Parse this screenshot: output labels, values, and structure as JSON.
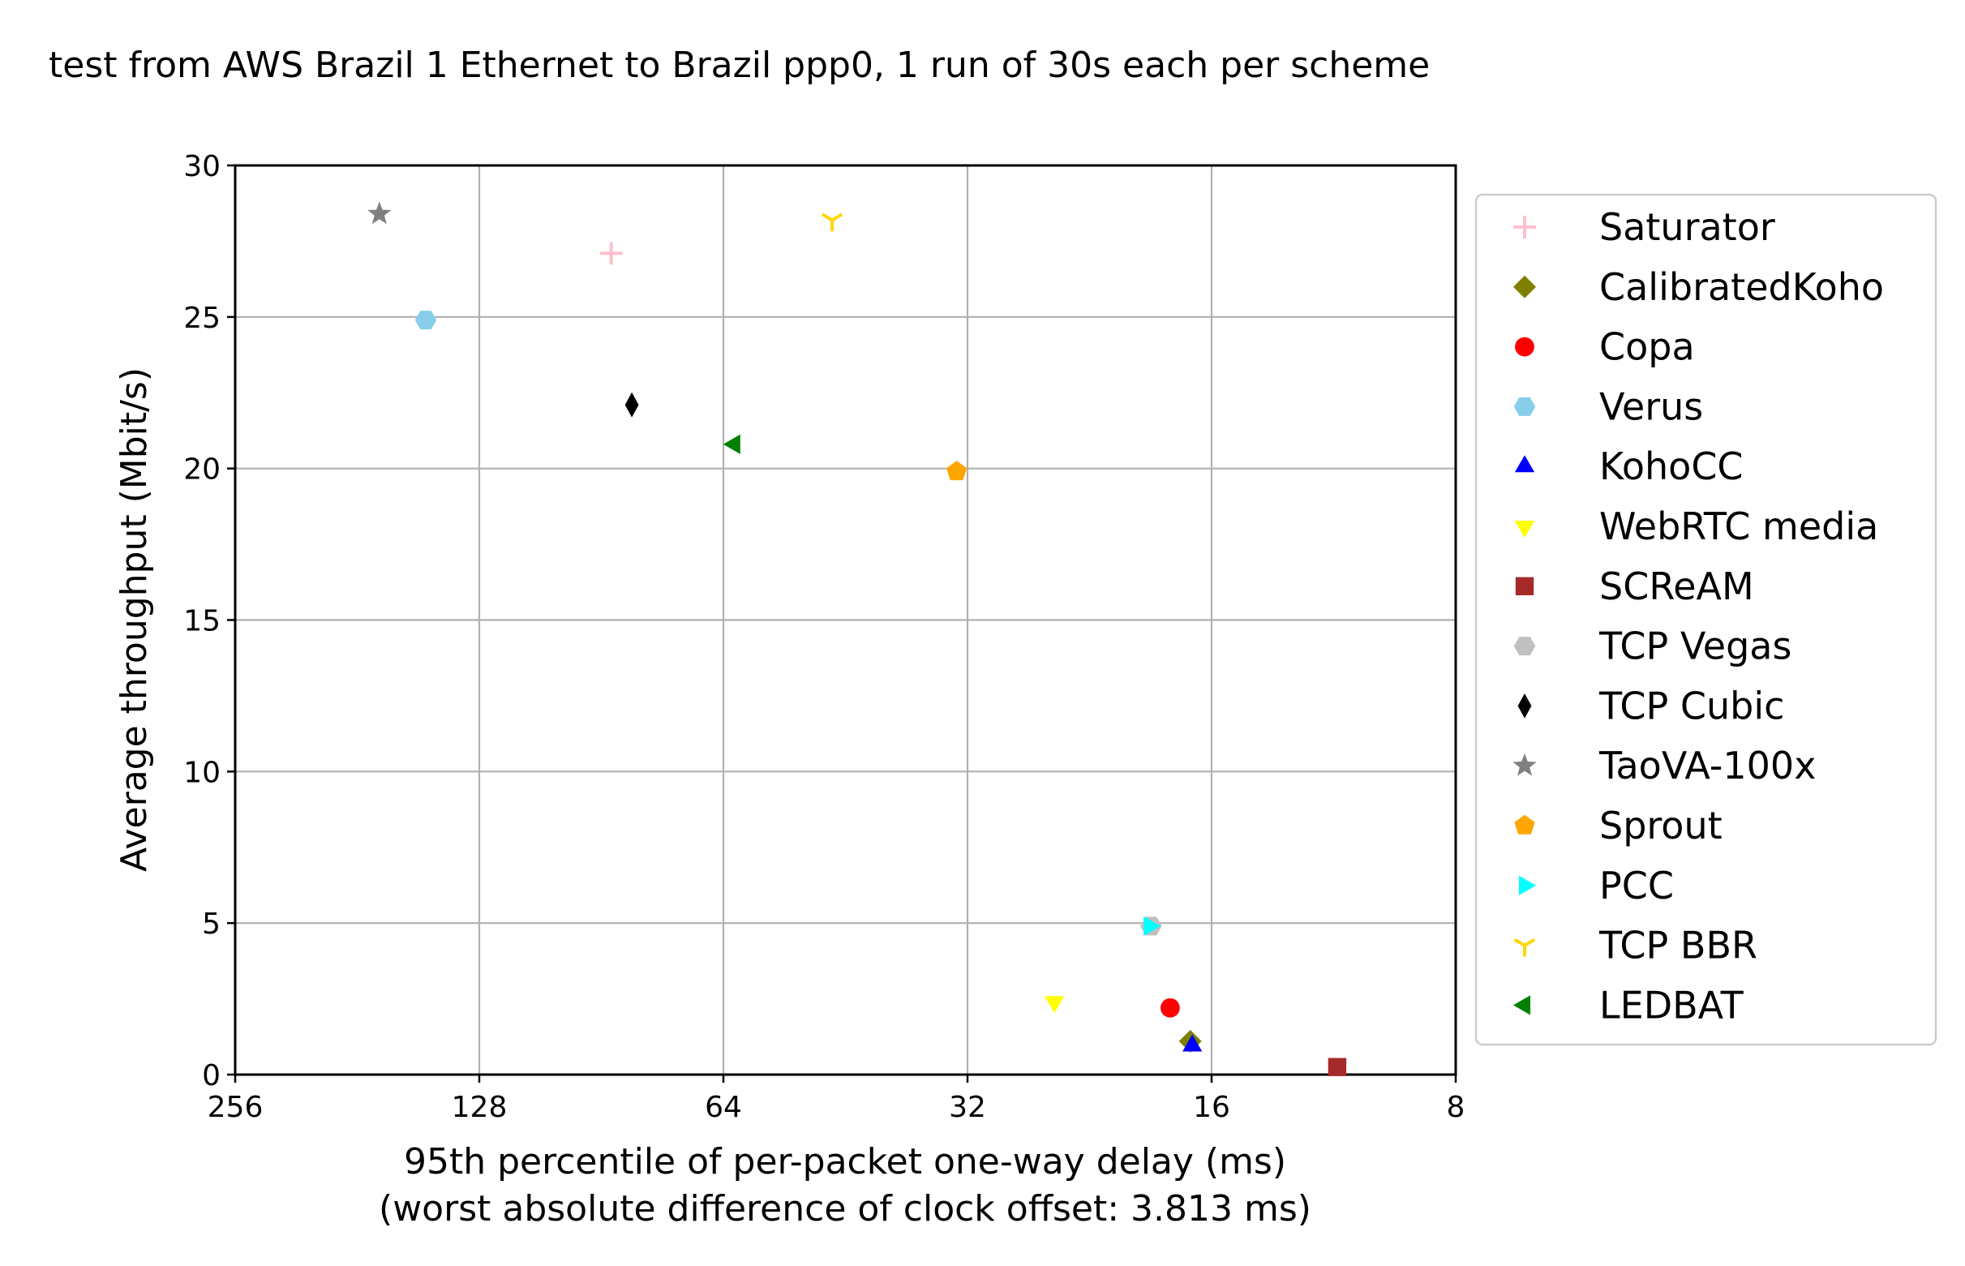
{
  "chart_data": {
    "type": "scatter",
    "title": "test from AWS Brazil 1 Ethernet to Brazil ppp0, 1 run of 30s each per scheme",
    "xlabel": "95th percentile of per-packet one-way delay (ms)",
    "xlabel2": "(worst absolute difference of clock offset: 3.813 ms)",
    "ylabel": "Average throughput (Mbit/s)",
    "xscale": "log2-inverted",
    "xlim": [
      256,
      8
    ],
    "ylim": [
      0,
      30
    ],
    "xticks": [
      256,
      128,
      64,
      32,
      16,
      8
    ],
    "xtick_labels": [
      "256",
      "128",
      "64",
      "32",
      "16",
      "8"
    ],
    "yticks": [
      0,
      5,
      10,
      15,
      20,
      25,
      30
    ],
    "ytick_labels": [
      "0",
      "5",
      "10",
      "15",
      "20",
      "25",
      "30"
    ],
    "grid": true,
    "legend_position": "right-outside",
    "series": [
      {
        "name": "Saturator",
        "marker": "plus",
        "color": "#ffc0cb",
        "x": 88,
        "y": 27.1
      },
      {
        "name": "CalibratedKoho",
        "marker": "diamond",
        "color": "#808000",
        "x": 17.0,
        "y": 1.1
      },
      {
        "name": "Copa",
        "marker": "circle",
        "color": "#ff0000",
        "x": 18.0,
        "y": 2.2
      },
      {
        "name": "Verus",
        "marker": "hexagon",
        "color": "#87ceeb",
        "x": 149,
        "y": 24.9
      },
      {
        "name": "KohoCC",
        "marker": "triangle-up",
        "color": "#0000ff",
        "x": 16.9,
        "y": 0.95
      },
      {
        "name": "WebRTC media",
        "marker": "triangle-down",
        "color": "#ffff00",
        "x": 25,
        "y": 2.4
      },
      {
        "name": "SCReAM",
        "marker": "square",
        "color": "#a52a2a",
        "x": 11.2,
        "y": 0.25
      },
      {
        "name": "TCP Vegas",
        "marker": "hexagon",
        "color": "#c0c0c0",
        "x": 19.0,
        "y": 4.9
      },
      {
        "name": "TCP Cubic",
        "marker": "thin-diamond",
        "color": "#000000",
        "x": 83,
        "y": 22.1
      },
      {
        "name": "TaoVA-100x",
        "marker": "star",
        "color": "#808080",
        "x": 170,
        "y": 28.4
      },
      {
        "name": "Sprout",
        "marker": "pentagon",
        "color": "#ffa500",
        "x": 33,
        "y": 19.9
      },
      {
        "name": "PCC",
        "marker": "triangle-right",
        "color": "#00ffff",
        "x": 19.1,
        "y": 4.9
      },
      {
        "name": "TCP BBR",
        "marker": "tri-down",
        "color": "#ffd700",
        "x": 47,
        "y": 28.2
      },
      {
        "name": "LEDBAT",
        "marker": "triangle-left",
        "color": "#008000",
        "x": 62,
        "y": 20.8
      }
    ]
  }
}
